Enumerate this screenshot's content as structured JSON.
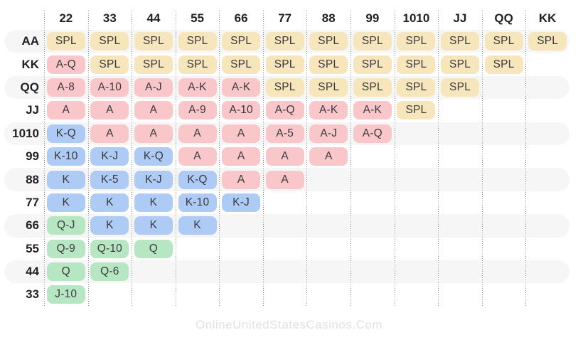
{
  "chart_data": {
    "type": "table",
    "columns": [
      "22",
      "33",
      "44",
      "55",
      "66",
      "77",
      "88",
      "99",
      "1010",
      "JJ",
      "QQ",
      "KK"
    ],
    "rows": [
      {
        "label": "AA",
        "striped": true,
        "cells": [
          {
            "text": "SPL",
            "kind": "split"
          },
          {
            "text": "SPL",
            "kind": "split"
          },
          {
            "text": "SPL",
            "kind": "split"
          },
          {
            "text": "SPL",
            "kind": "split"
          },
          {
            "text": "SPL",
            "kind": "split"
          },
          {
            "text": "SPL",
            "kind": "split"
          },
          {
            "text": "SPL",
            "kind": "split"
          },
          {
            "text": "SPL",
            "kind": "split"
          },
          {
            "text": "SPL",
            "kind": "split"
          },
          {
            "text": "SPL",
            "kind": "split"
          },
          {
            "text": "SPL",
            "kind": "split"
          },
          {
            "text": "SPL",
            "kind": "split"
          }
        ]
      },
      {
        "label": "KK",
        "striped": false,
        "cells": [
          {
            "text": "A-Q",
            "kind": "ace"
          },
          {
            "text": "SPL",
            "kind": "split"
          },
          {
            "text": "SPL",
            "kind": "split"
          },
          {
            "text": "SPL",
            "kind": "split"
          },
          {
            "text": "SPL",
            "kind": "split"
          },
          {
            "text": "SPL",
            "kind": "split"
          },
          {
            "text": "SPL",
            "kind": "split"
          },
          {
            "text": "SPL",
            "kind": "split"
          },
          {
            "text": "SPL",
            "kind": "split"
          },
          {
            "text": "SPL",
            "kind": "split"
          },
          {
            "text": "SPL",
            "kind": "split"
          }
        ]
      },
      {
        "label": "QQ",
        "striped": true,
        "cells": [
          {
            "text": "A-8",
            "kind": "ace"
          },
          {
            "text": "A-10",
            "kind": "ace"
          },
          {
            "text": "A-J",
            "kind": "ace"
          },
          {
            "text": "A-K",
            "kind": "ace"
          },
          {
            "text": "A-K",
            "kind": "ace"
          },
          {
            "text": "SPL",
            "kind": "split"
          },
          {
            "text": "SPL",
            "kind": "split"
          },
          {
            "text": "SPL",
            "kind": "split"
          },
          {
            "text": "SPL",
            "kind": "split"
          },
          {
            "text": "SPL",
            "kind": "split"
          }
        ]
      },
      {
        "label": "JJ",
        "striped": false,
        "cells": [
          {
            "text": "A",
            "kind": "ace"
          },
          {
            "text": "A",
            "kind": "ace"
          },
          {
            "text": "A",
            "kind": "ace"
          },
          {
            "text": "A-9",
            "kind": "ace"
          },
          {
            "text": "A-10",
            "kind": "ace"
          },
          {
            "text": "A-Q",
            "kind": "ace"
          },
          {
            "text": "A-K",
            "kind": "ace"
          },
          {
            "text": "A-K",
            "kind": "ace"
          },
          {
            "text": "SPL",
            "kind": "split"
          }
        ]
      },
      {
        "label": "1010",
        "striped": true,
        "cells": [
          {
            "text": "K-Q",
            "kind": "king"
          },
          {
            "text": "A",
            "kind": "ace"
          },
          {
            "text": "A",
            "kind": "ace"
          },
          {
            "text": "A",
            "kind": "ace"
          },
          {
            "text": "A",
            "kind": "ace"
          },
          {
            "text": "A-5",
            "kind": "ace"
          },
          {
            "text": "A-J",
            "kind": "ace"
          },
          {
            "text": "A-Q",
            "kind": "ace"
          }
        ]
      },
      {
        "label": "99",
        "striped": false,
        "cells": [
          {
            "text": "K-10",
            "kind": "king"
          },
          {
            "text": "K-J",
            "kind": "king"
          },
          {
            "text": "K-Q",
            "kind": "king"
          },
          {
            "text": "A",
            "kind": "ace"
          },
          {
            "text": "A",
            "kind": "ace"
          },
          {
            "text": "A",
            "kind": "ace"
          },
          {
            "text": "A",
            "kind": "ace"
          }
        ]
      },
      {
        "label": "88",
        "striped": true,
        "cells": [
          {
            "text": "K",
            "kind": "king"
          },
          {
            "text": "K-5",
            "kind": "king"
          },
          {
            "text": "K-J",
            "kind": "king"
          },
          {
            "text": "K-Q",
            "kind": "king"
          },
          {
            "text": "A",
            "kind": "ace"
          },
          {
            "text": "A",
            "kind": "ace"
          }
        ]
      },
      {
        "label": "77",
        "striped": false,
        "cells": [
          {
            "text": "K",
            "kind": "king"
          },
          {
            "text": "K",
            "kind": "king"
          },
          {
            "text": "K",
            "kind": "king"
          },
          {
            "text": "K-10",
            "kind": "king"
          },
          {
            "text": "K-J",
            "kind": "king"
          }
        ]
      },
      {
        "label": "66",
        "striped": true,
        "cells": [
          {
            "text": "Q-J",
            "kind": "queen"
          },
          {
            "text": "K",
            "kind": "king"
          },
          {
            "text": "K",
            "kind": "king"
          },
          {
            "text": "K",
            "kind": "king"
          }
        ]
      },
      {
        "label": "55",
        "striped": false,
        "cells": [
          {
            "text": "Q-9",
            "kind": "queen"
          },
          {
            "text": "Q-10",
            "kind": "queen"
          },
          {
            "text": "Q",
            "kind": "queen"
          }
        ]
      },
      {
        "label": "44",
        "striped": true,
        "cells": [
          {
            "text": "Q",
            "kind": "queen"
          },
          {
            "text": "Q-6",
            "kind": "queen"
          }
        ]
      },
      {
        "label": "33",
        "striped": false,
        "cells": [
          {
            "text": "J-10",
            "kind": "queen"
          }
        ]
      }
    ],
    "colors": {
      "split": "#F7E6BB",
      "ace": "#F9C6CA",
      "king": "#ADCBF4",
      "queen": "#B7E6C3",
      "stripe": "#F6F6F7",
      "divider": "#8D8D8D"
    }
  },
  "watermark": "OnlineUnitedStatesCasinos.Com"
}
